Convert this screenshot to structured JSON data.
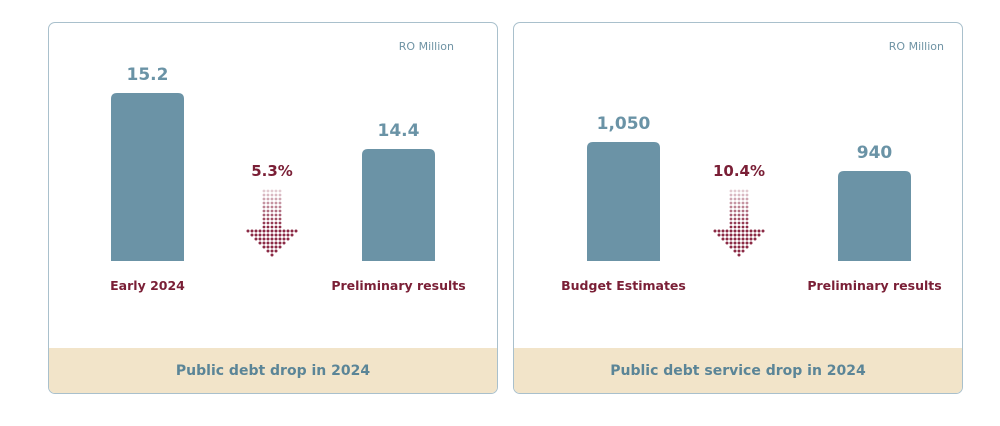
{
  "colors": {
    "bar": "#6b93a6",
    "value_text": "#6a93a6",
    "label_text": "#7a1f36",
    "arrow": "#8b2a45",
    "footer_bg": "#f2e4c9",
    "border": "#a9c0cc"
  },
  "chart_data": [
    {
      "type": "bar",
      "title": "Public debt drop in 2024",
      "unit": "RO Million",
      "categories": [
        "Early 2024",
        "Preliminary results"
      ],
      "values": [
        15.2,
        14.4
      ],
      "value_labels": [
        "15.2",
        "14.4"
      ],
      "change_label": "5.3%",
      "change_direction": "down",
      "ylim": [
        12.8,
        15.2
      ]
    },
    {
      "type": "bar",
      "title": "Public debt service drop in 2024",
      "unit": "RO Million",
      "categories": [
        "Budget Estimates",
        "Preliminary results"
      ],
      "values": [
        1050,
        940
      ],
      "value_labels": [
        "1,050",
        "940"
      ],
      "change_label": "10.4%",
      "change_direction": "down",
      "ylim": [
        600,
        1235
      ]
    }
  ]
}
